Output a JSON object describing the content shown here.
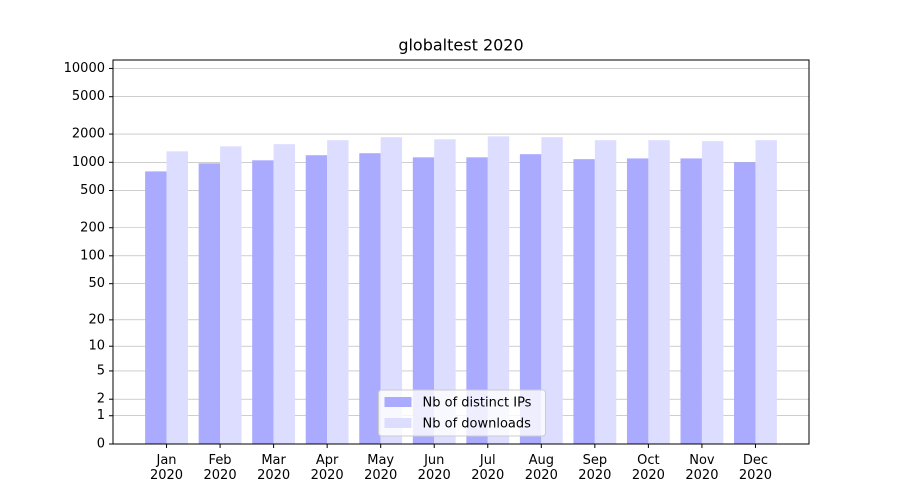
{
  "chart_data": {
    "type": "bar",
    "title": "globaltest 2020",
    "categories": [
      "Jan\n2020",
      "Feb\n2020",
      "Mar\n2020",
      "Apr\n2020",
      "May\n2020",
      "Jun\n2020",
      "Jul\n2020",
      "Aug\n2020",
      "Sep\n2020",
      "Oct\n2020",
      "Nov\n2020",
      "Dec\n2020"
    ],
    "series": [
      {
        "name": "Nb of distinct IPs",
        "color": "#aaaaff",
        "values": [
          800,
          975,
          1050,
          1190,
          1250,
          1130,
          1130,
          1220,
          1080,
          1100,
          1100,
          1000
        ]
      },
      {
        "name": "Nb of downloads",
        "color": "#ddddff",
        "values": [
          1310,
          1480,
          1560,
          1720,
          1850,
          1760,
          1890,
          1850,
          1720,
          1720,
          1680,
          1720
        ]
      }
    ],
    "y_scale": "symlog",
    "ylim": [
      0,
      12300
    ],
    "yticks": [
      0,
      1,
      2,
      5,
      10,
      20,
      50,
      100,
      200,
      500,
      1000,
      2000,
      5000,
      10000
    ],
    "grid": true,
    "legend": "lower center"
  }
}
